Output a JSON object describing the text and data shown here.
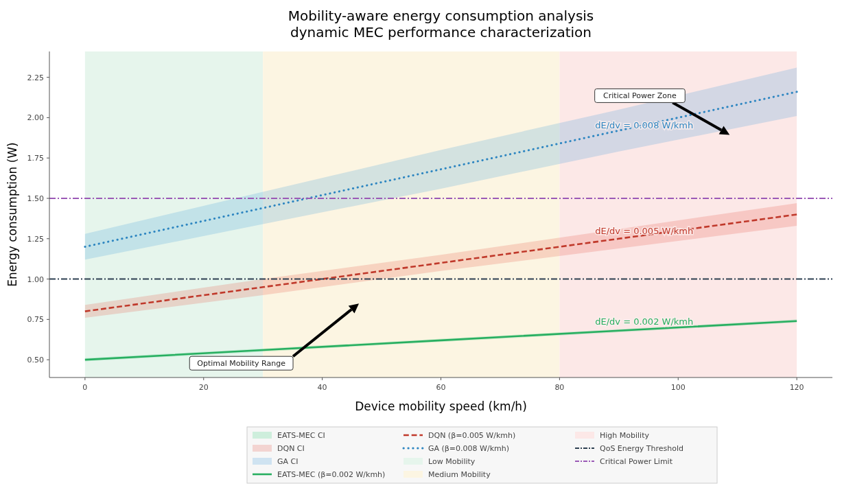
{
  "chart_data": {
    "type": "line",
    "title": "Mobility-aware energy consumption analysis",
    "subtitle": "dynamic MEC performance characterization",
    "xlabel": "Device mobility speed (km/h)",
    "ylabel": "Energy consumption (W)",
    "xlim": [
      -6,
      126
    ],
    "xticks": [
      0,
      20,
      40,
      60,
      80,
      100,
      120
    ],
    "ylim": [
      0.39,
      2.41
    ],
    "yticks": [
      {
        "value": 0.5,
        "label": "0.50"
      },
      0.75,
      {
        "value": 1.0,
        "label": "1.00"
      },
      1.25,
      {
        "value": 1.5,
        "label": "1.50"
      },
      1.75,
      {
        "value": 2.0,
        "label": "2.00"
      },
      2.25
    ],
    "series": [
      {
        "name": "EATS-MEC CI",
        "type": "area",
        "color": "#2ecc71"
      },
      {
        "name": "DQN CI",
        "type": "area",
        "color": "#e74c3c"
      },
      {
        "name": "GA CI",
        "type": "area",
        "color": "#3498db"
      },
      {
        "name": "EATS-MEC (β=0.002 W/kmh)",
        "color": "#27ae60",
        "line_style": "solid",
        "x": [
          0,
          30,
          60,
          90,
          120
        ],
        "values": [
          0.5,
          0.56,
          0.62,
          0.68,
          0.74
        ],
        "lower": [
          0.49,
          0.55,
          0.61,
          0.67,
          0.73
        ],
        "upper": [
          0.51,
          0.57,
          0.63,
          0.69,
          0.75
        ]
      },
      {
        "name": "DQN (β=0.005 W/kmh)",
        "color": "#c0392b",
        "line_style": "dashed",
        "x": [
          0,
          30,
          60,
          90,
          120
        ],
        "values": [
          0.8,
          0.95,
          1.1,
          1.25,
          1.4
        ],
        "lower": [
          0.76,
          0.9,
          1.05,
          1.19,
          1.33
        ],
        "upper": [
          0.84,
          1.0,
          1.15,
          1.31,
          1.47
        ]
      },
      {
        "name": "GA (β=0.008 W/kmh)",
        "color": "#2e86c1",
        "line_style": "dotted",
        "x": [
          0,
          30,
          60,
          90,
          120
        ],
        "values": [
          1.2,
          1.44,
          1.68,
          1.92,
          2.16
        ],
        "lower": [
          1.12,
          1.34,
          1.56,
          1.79,
          2.01
        ],
        "upper": [
          1.28,
          1.54,
          1.8,
          2.05,
          2.31
        ]
      }
    ],
    "bands": [
      {
        "axis": "x",
        "from": 0,
        "to": 30,
        "label": "Low Mobility",
        "color": "#e6f5ec"
      },
      {
        "axis": "x",
        "from": 30,
        "to": 80,
        "label": "Medium Mobility",
        "color": "#fcf5e2"
      },
      {
        "axis": "x",
        "from": 80,
        "to": 120,
        "label": "High Mobility",
        "color": "#fce8e7"
      }
    ],
    "ref_lines": [
      {
        "axis": "y",
        "value": 1.0,
        "label": "QoS Energy Threshold",
        "color": "#2c3e50",
        "line_style": "dashed"
      },
      {
        "axis": "y",
        "value": 1.5,
        "label": "Critical Power Limit",
        "color": "#9b59b6",
        "line_style": "dashed"
      }
    ],
    "annotations": [
      {
        "text": "Critical Power Zone",
        "x": 100,
        "y": 2.0
      },
      {
        "text": "Optimal Mobility Range",
        "x": 36,
        "y": 0.572
      },
      {
        "text": "dE/dv = 0.008 W/kmh",
        "x": 86,
        "y": 1.888
      },
      {
        "text": "dE/dv = 0.005 W/kmh",
        "x": 86,
        "y": 1.23
      },
      {
        "text": "dE/dv = 0.002 W/kmh",
        "x": 86,
        "y": 0.672
      }
    ],
    "legend": "bottom",
    "grid": false
  }
}
